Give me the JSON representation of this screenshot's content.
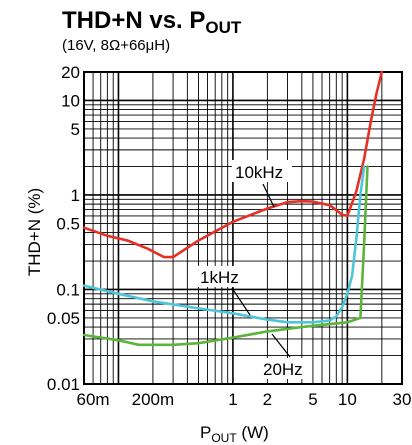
{
  "chart_data": {
    "type": "line",
    "title_main": "THD+N vs. P",
    "title_sub": "OUT",
    "subtitle": "(16V, 8Ω+66μH)",
    "xlabel_main": "P",
    "xlabel_sub": "OUT",
    "xlabel_unit": " (W)",
    "ylabel": "THD+N (%)",
    "x_scale": "log",
    "y_scale": "log",
    "xlim": [
      0.05,
      30
    ],
    "ylim": [
      0.01,
      20
    ],
    "grid": true,
    "x_ticks": [
      {
        "v": 0.06,
        "label": "60m"
      },
      {
        "v": 0.2,
        "label": "200m"
      },
      {
        "v": 1,
        "label": "1"
      },
      {
        "v": 2,
        "label": "2"
      },
      {
        "v": 5,
        "label": "5"
      },
      {
        "v": 10,
        "label": "10"
      },
      {
        "v": 30,
        "label": "30"
      }
    ],
    "y_ticks": [
      {
        "v": 0.01,
        "label": "0.01"
      },
      {
        "v": 0.05,
        "label": "0.05"
      },
      {
        "v": 0.1,
        "label": "0.1"
      },
      {
        "v": 0.5,
        "label": "0.5"
      },
      {
        "v": 1,
        "label": "1"
      },
      {
        "v": 5,
        "label": "5"
      },
      {
        "v": 10,
        "label": "10"
      },
      {
        "v": 20,
        "label": "20"
      }
    ],
    "series": [
      {
        "name": "10kHz",
        "color": "#e53125",
        "x": [
          0.05,
          0.08,
          0.12,
          0.18,
          0.25,
          0.3,
          0.5,
          1.0,
          2.0,
          3.0,
          4.0,
          5.0,
          7.0,
          9.0,
          10.0,
          12.0,
          14.0,
          16.0,
          18.0,
          20.0
        ],
        "y": [
          0.45,
          0.37,
          0.33,
          0.27,
          0.22,
          0.22,
          0.33,
          0.52,
          0.72,
          0.84,
          0.86,
          0.85,
          0.78,
          0.62,
          0.6,
          1.1,
          2.4,
          6.0,
          12.0,
          20.0
        ]
      },
      {
        "name": "1kHz",
        "color": "#4ec6d9",
        "x": [
          0.05,
          0.1,
          0.2,
          0.5,
          1.0,
          2.0,
          3.0,
          5.0,
          7.0,
          8.0,
          9.0,
          10.0,
          11.0,
          12.0,
          13.0,
          14.0
        ],
        "y": [
          0.11,
          0.09,
          0.075,
          0.063,
          0.056,
          0.048,
          0.045,
          0.045,
          0.047,
          0.052,
          0.065,
          0.09,
          0.14,
          0.35,
          1.0,
          2.0
        ]
      },
      {
        "name": "20Hz",
        "color": "#5cb43b",
        "x": [
          0.05,
          0.1,
          0.15,
          0.3,
          0.5,
          1.0,
          2.0,
          4.0,
          7.0,
          10.0,
          13.0,
          14.0,
          15.0
        ],
        "y": [
          0.033,
          0.029,
          0.026,
          0.026,
          0.027,
          0.031,
          0.036,
          0.04,
          0.043,
          0.045,
          0.05,
          0.3,
          2.0
        ]
      }
    ],
    "annotations": [
      {
        "text": "10kHz",
        "series": "10kHz"
      },
      {
        "text": "1kHz",
        "series": "1kHz"
      },
      {
        "text": "20Hz",
        "series": "20Hz"
      }
    ]
  }
}
